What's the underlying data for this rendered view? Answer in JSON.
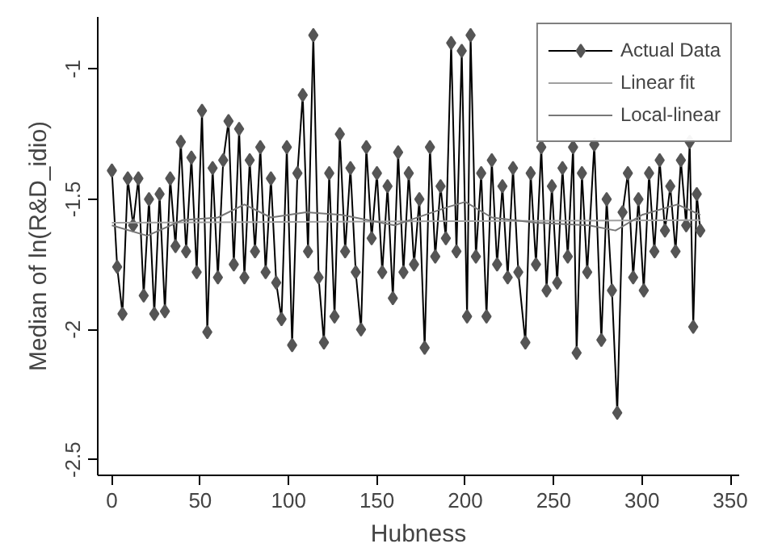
{
  "chart_data": {
    "type": "line",
    "xlabel": "Hubness",
    "ylabel": "Median of ln(R&D_idio)",
    "xlim": [
      -8,
      355
    ],
    "ylim": [
      -2.56,
      -0.8
    ],
    "xticks": [
      0,
      50,
      100,
      150,
      200,
      250,
      300,
      350
    ],
    "yticks": [
      -1,
      -1.5,
      -2,
      -2.5
    ],
    "grid": false,
    "legend": "top right",
    "series": [
      {
        "name": "Actual Data",
        "color": "#555555",
        "marker": "diamond",
        "x": [
          0,
          3,
          6,
          9,
          12,
          15,
          18,
          21,
          24,
          27,
          30,
          33,
          36,
          39,
          42,
          45,
          48,
          51,
          54,
          57,
          60,
          63,
          66,
          69,
          72,
          75,
          78,
          81,
          84,
          87,
          90,
          93,
          96,
          99,
          102,
          105,
          108,
          111,
          114,
          117,
          120,
          123,
          126,
          129,
          132,
          135,
          138,
          141,
          144,
          147,
          150,
          153,
          156,
          159,
          162,
          165,
          168,
          171,
          174,
          177,
          180,
          183,
          186,
          189,
          192,
          195,
          198,
          201,
          203,
          206,
          209,
          212,
          215,
          218,
          221,
          224,
          227,
          230,
          234,
          237,
          240,
          243,
          246,
          249,
          252,
          255,
          258,
          261,
          263,
          266,
          269,
          273,
          277,
          280,
          283,
          286,
          289,
          292,
          295,
          298,
          301,
          304,
          307,
          310,
          313,
          316,
          319,
          322,
          325,
          327,
          329,
          331,
          333
        ],
        "values": [
          -1.39,
          -1.76,
          -1.94,
          -1.42,
          -1.6,
          -1.42,
          -1.87,
          -1.5,
          -1.94,
          -1.48,
          -1.93,
          -1.42,
          -1.68,
          -1.28,
          -1.7,
          -1.34,
          -1.78,
          -1.16,
          -2.01,
          -1.38,
          -1.8,
          -1.35,
          -1.2,
          -1.75,
          -1.23,
          -1.8,
          -1.35,
          -1.7,
          -1.3,
          -1.78,
          -1.42,
          -1.82,
          -1.96,
          -1.3,
          -2.06,
          -1.4,
          -1.1,
          -1.7,
          -0.87,
          -1.8,
          -2.05,
          -1.4,
          -1.95,
          -1.25,
          -1.7,
          -1.38,
          -1.78,
          -2.0,
          -1.3,
          -1.65,
          -1.4,
          -1.78,
          -1.45,
          -1.88,
          -1.32,
          -1.78,
          -1.4,
          -1.75,
          -1.5,
          -2.07,
          -1.3,
          -1.72,
          -1.45,
          -1.65,
          -0.9,
          -1.7,
          -0.93,
          -1.95,
          -0.87,
          -1.72,
          -1.4,
          -1.95,
          -1.35,
          -1.75,
          -1.45,
          -1.8,
          -1.38,
          -1.78,
          -2.05,
          -1.4,
          -1.75,
          -1.3,
          -1.85,
          -1.45,
          -1.82,
          -1.38,
          -1.72,
          -1.3,
          -2.09,
          -1.4,
          -1.78,
          -1.29,
          -2.04,
          -1.5,
          -1.85,
          -2.32,
          -1.55,
          -1.4,
          -1.8,
          -1.5,
          -1.85,
          -1.4,
          -1.7,
          -1.35,
          -1.62,
          -1.45,
          -1.7,
          -1.35,
          -1.6,
          -1.28,
          -1.99,
          -1.48,
          -1.62
        ]
      },
      {
        "name": "Linear fit",
        "color": "#a0a0a0",
        "marker": "none",
        "x": [
          0,
          333
        ],
        "values": [
          -1.59,
          -1.58
        ]
      },
      {
        "name": "Local-linear",
        "color": "#777777",
        "marker": "none",
        "x": [
          0,
          20,
          40,
          60,
          75,
          90,
          110,
          130,
          160,
          190,
          200,
          215,
          240,
          270,
          285,
          300,
          320,
          333
        ],
        "values": [
          -1.6,
          -1.64,
          -1.58,
          -1.57,
          -1.52,
          -1.57,
          -1.55,
          -1.56,
          -1.6,
          -1.53,
          -1.51,
          -1.57,
          -1.59,
          -1.6,
          -1.62,
          -1.56,
          -1.52,
          -1.56
        ]
      }
    ]
  }
}
